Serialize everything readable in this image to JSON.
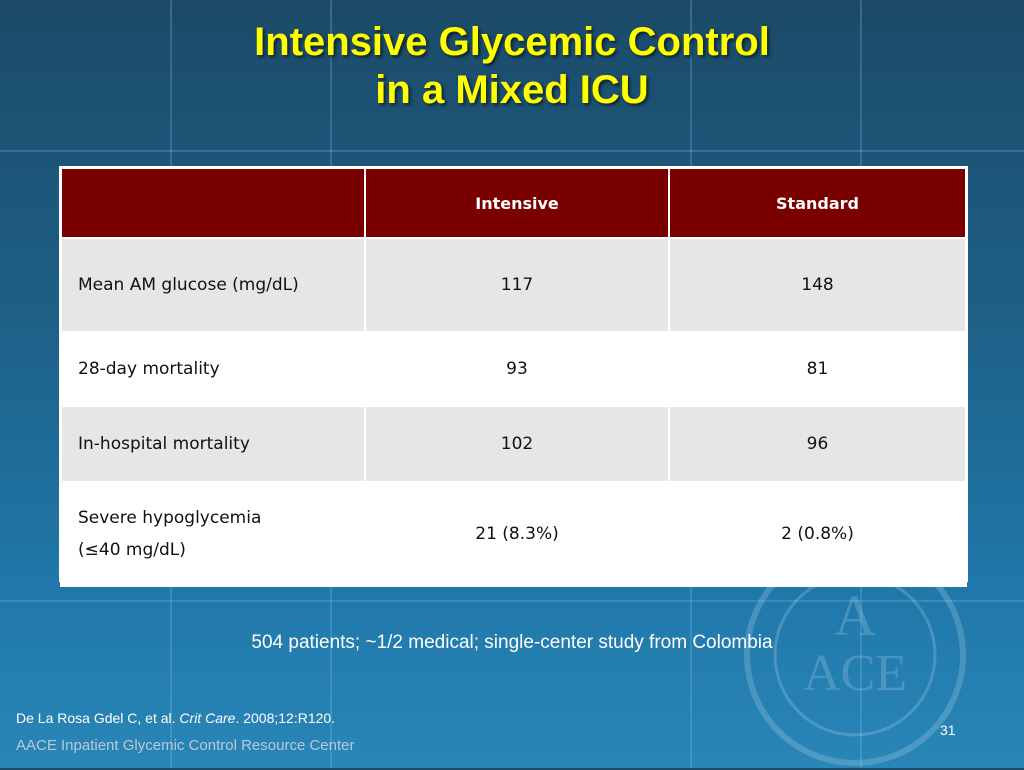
{
  "slide": {
    "title_line1": "Intensive Glycemic Control",
    "title_line2": "in a Mixed ICU",
    "table": {
      "headers": [
        "",
        "Intensive",
        "Standard"
      ],
      "rows": [
        {
          "label": "Mean AM glucose (mg/dL)",
          "intensive": "117",
          "standard": "148"
        },
        {
          "label": "28-day mortality",
          "intensive": "93",
          "standard": "81"
        },
        {
          "label": "In-hospital mortality",
          "intensive": "102",
          "standard": "96"
        },
        {
          "label_line1": "Severe hypoglycemia",
          "label_line2": "(≤40 mg/dL)",
          "intensive": "21 (8.3%)",
          "standard": "2 (0.8%)"
        }
      ]
    },
    "note": "504 patients; ~1/2 medical; single-center study from Colombia",
    "citation": {
      "authors": "De La Rosa Gdel C, et al.",
      "journal": "Crit Care",
      "details": ". 2008;12:R120."
    },
    "page_number": "31",
    "footer": "AACE Inpatient Glycemic Control Resource Center",
    "seal_text": "ACE"
  },
  "colors": {
    "title": "#ffff00",
    "header_bg": "#7a0000",
    "row_shade": "#e6e6e6",
    "background_top": "#1c4a68",
    "background_bottom": "#2a86b8"
  }
}
